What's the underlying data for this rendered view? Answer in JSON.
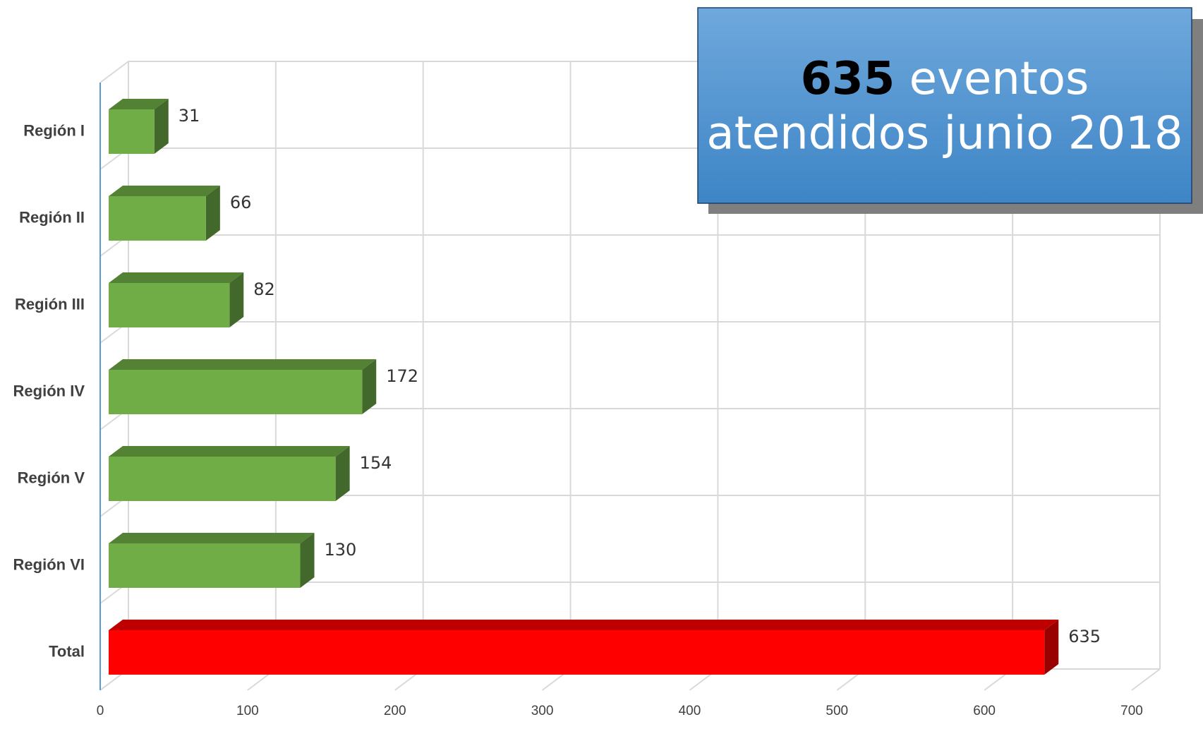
{
  "chart_data": {
    "type": "bar3d_horizontal",
    "categories": [
      "Región I",
      "Región II",
      "Región III",
      "Región IV",
      "Región V",
      "Región VI",
      "Total"
    ],
    "values": [
      31,
      66,
      82,
      172,
      154,
      130,
      635
    ],
    "colors": [
      "#70ad47",
      "#70ad47",
      "#70ad47",
      "#70ad47",
      "#70ad47",
      "#70ad47",
      "#ff0000"
    ],
    "xlim": [
      0,
      700
    ],
    "xticks": [
      0,
      100,
      200,
      300,
      400,
      500,
      600,
      700
    ],
    "grid": true,
    "annotation": {
      "highlight": "635",
      "text": "eventos",
      "line2": "atendidos junio 2018"
    }
  }
}
